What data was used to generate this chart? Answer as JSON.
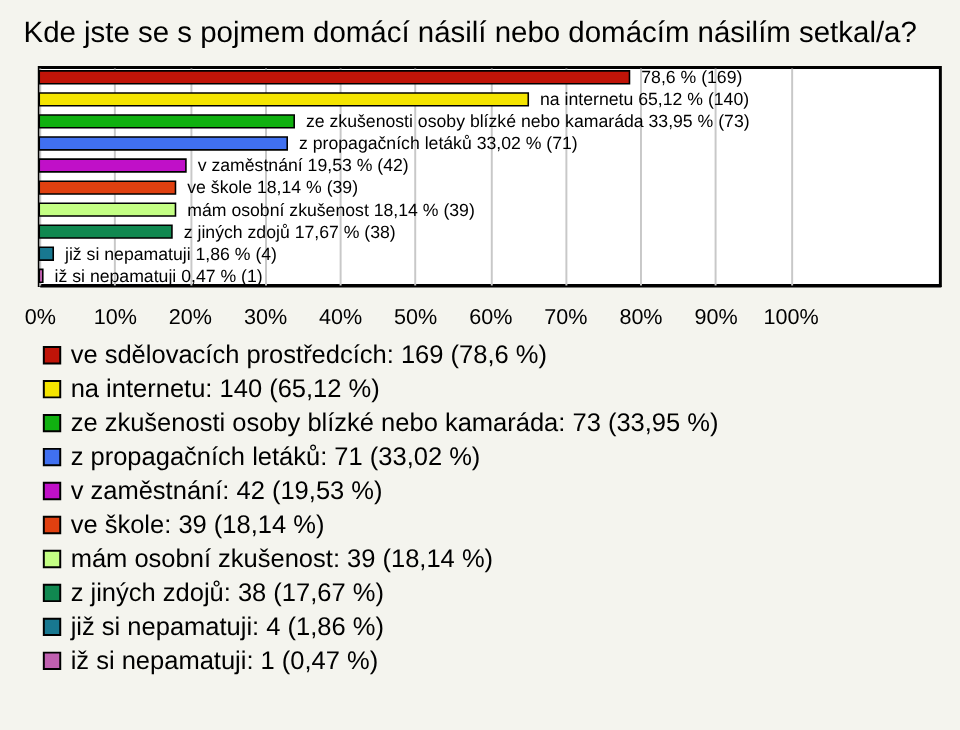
{
  "chart_data": {
    "type": "bar",
    "orientation": "horizontal",
    "stacked": true,
    "title": "Kde jste se s pojmem domácí násilí nebo domácím násilím setkal/a?",
    "categories": [
      null,
      null,
      null,
      null,
      null,
      null,
      null,
      null,
      null,
      null
    ],
    "series": [
      {
        "name": "ve sdělovacích prostředcích: 169 (78,6 %)",
        "color": "#c01408",
        "values": [
          78.6,
          null,
          null,
          null,
          null,
          null,
          null,
          null,
          null,
          null
        ],
        "value_labels": [
          "78,6 % (169)",
          null,
          null,
          null,
          null,
          null,
          null,
          null,
          null,
          null
        ]
      },
      {
        "name": "na internetu: 140 (65,12 %)",
        "color": "#f4e400",
        "values": [
          null,
          65.12,
          null,
          null,
          null,
          null,
          null,
          null,
          null,
          null
        ],
        "value_labels": [
          null,
          "na internetu 65,12 % (140)",
          null,
          null,
          null,
          null,
          null,
          null,
          null,
          null
        ]
      },
      {
        "name": "ze zkušenosti osoby blízké nebo kamaráda: 73 (33,95 %)",
        "color": "#10b010",
        "values": [
          null,
          null,
          33.95,
          null,
          null,
          null,
          null,
          null,
          null,
          null
        ],
        "value_labels": [
          null,
          null,
          "ze zkušenosti osoby blízké nebo kamaráda 33,95 % (73)",
          null,
          null,
          null,
          null,
          null,
          null,
          null
        ]
      },
      {
        "name": "z propagačních letáků: 71 (33,02 %)",
        "color": "#4070f0",
        "values": [
          null,
          null,
          null,
          33.02,
          null,
          null,
          null,
          null,
          null,
          null
        ],
        "value_labels": [
          null,
          null,
          null,
          "z propagačních letáků 33,02 % (71)",
          null,
          null,
          null,
          null,
          null,
          null
        ]
      },
      {
        "name": "v zaměstnání: 42 (19,53 %)",
        "color": "#c010c8",
        "values": [
          null,
          null,
          null,
          null,
          19.53,
          null,
          null,
          null,
          null,
          null
        ],
        "value_labels": [
          null,
          null,
          null,
          null,
          "v zaměstnání 19,53 % (42)",
          null,
          null,
          null,
          null,
          null
        ]
      },
      {
        "name": "ve škole: 39 (18,14 %)",
        "color": "#e04010",
        "values": [
          null,
          null,
          null,
          null,
          null,
          18.14,
          null,
          null,
          null,
          null
        ],
        "value_labels": [
          null,
          null,
          null,
          null,
          null,
          "ve škole 18,14 % (39)",
          null,
          null,
          null,
          null
        ]
      },
      {
        "name": "mám osobní zkušenost: 39 (18,14 %)",
        "color": "#c4ff84",
        "values": [
          null,
          null,
          null,
          null,
          null,
          null,
          18.14,
          null,
          null,
          null
        ],
        "value_labels": [
          null,
          null,
          null,
          null,
          null,
          null,
          "mám osobní zkušenost 18,14 % (39)",
          null,
          null,
          null
        ]
      },
      {
        "name": "z jiných zdojů: 38 (17,67 %)",
        "color": "#108850",
        "values": [
          null,
          null,
          null,
          null,
          null,
          null,
          null,
          17.67,
          null,
          null
        ],
        "value_labels": [
          null,
          null,
          null,
          null,
          null,
          null,
          null,
          "z jiných zdojů 17,67 % (38)",
          null,
          null
        ]
      },
      {
        "name": "již si nepamatuji: 4 (1,86 %)",
        "color": "#187890",
        "values": [
          null,
          null,
          null,
          null,
          null,
          null,
          null,
          null,
          1.86,
          null
        ],
        "value_labels": [
          null,
          null,
          null,
          null,
          null,
          null,
          null,
          null,
          "již si nepamatuji 1,86 % (4)",
          null
        ]
      },
      {
        "name": "iž si nepamatuji: 1 (0,47 %)",
        "color": "#c060b0",
        "values": [
          null,
          null,
          null,
          null,
          null,
          null,
          null,
          null,
          null,
          0.47
        ],
        "value_labels": [
          null,
          null,
          null,
          null,
          null,
          null,
          null,
          null,
          null,
          "iž si nepamatuji 0,47 % (1)"
        ]
      }
    ],
    "xlim": [
      0,
      120
    ],
    "xticks": [
      {
        "value": 0,
        "label": "0%"
      },
      {
        "value": 10,
        "label": "10%"
      },
      {
        "value": 20,
        "label": "20%"
      },
      {
        "value": 30,
        "label": "30%"
      },
      {
        "value": 40,
        "label": "40%"
      },
      {
        "value": 50,
        "label": "50%"
      },
      {
        "value": 60,
        "label": "60%"
      },
      {
        "value": 70,
        "label": "70%"
      },
      {
        "value": 80,
        "label": "80%"
      },
      {
        "value": 90,
        "label": "90%"
      },
      {
        "value": 100,
        "label": "100%"
      }
    ],
    "grid": "x",
    "legend": "bottom",
    "tick_labels": "x"
  }
}
